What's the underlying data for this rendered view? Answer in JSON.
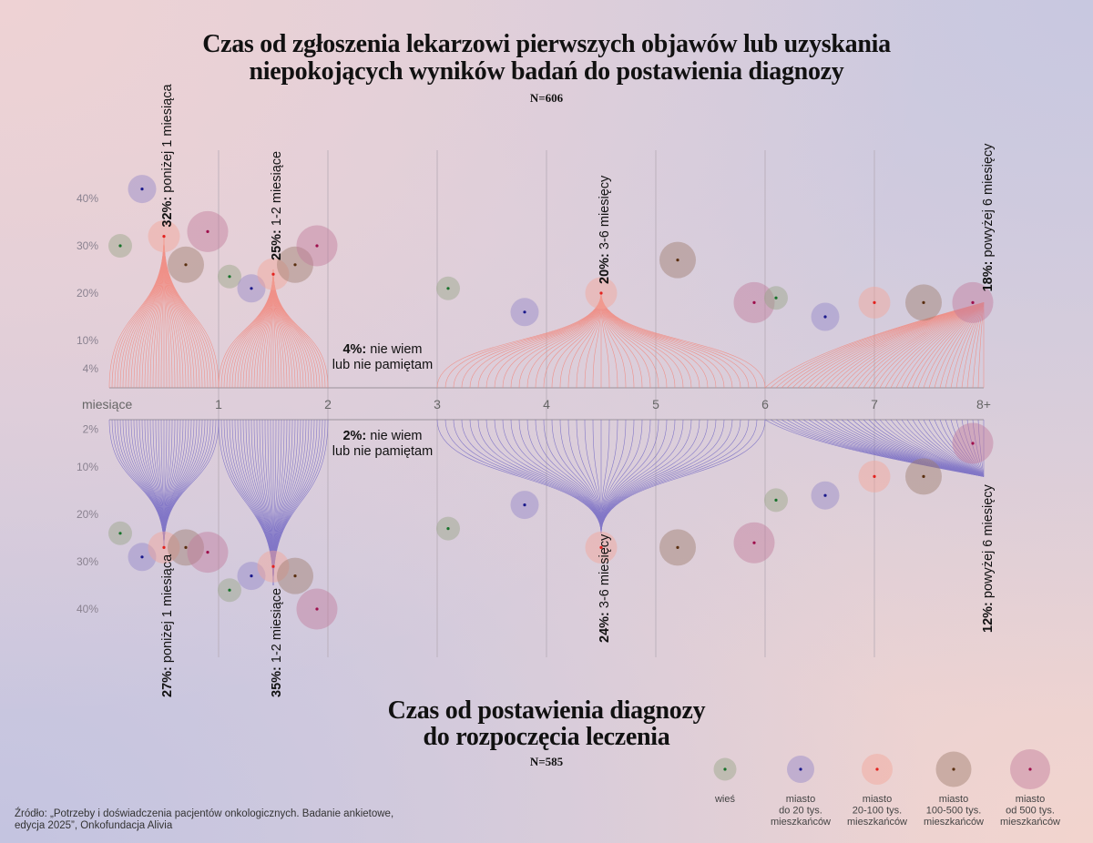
{
  "top_title": {
    "line1": "Czas od zgłoszenia lekarzowi pierwszych objawów lub uzyskania",
    "line2": "niepokojących wyników badań do postawienia diagnozy",
    "n": "N=606"
  },
  "bottom_title": {
    "line1": "Czas od postawienia diagnozy",
    "line2": "do rozpoczęcia leczenia",
    "n": "N=585"
  },
  "source": {
    "line1": "Źródło: „Potrzeby i doświadczenia pacjentów onkologicznych. Badanie ankietowe,",
    "line2": "edycja 2025”, Onkofundacja Alivia"
  },
  "chart_data": {
    "type": "bubble-fan",
    "x_axis": {
      "label": "miesiące",
      "ticks": [
        {
          "v": 1,
          "label": "1"
        },
        {
          "v": 2,
          "label": "2"
        },
        {
          "v": 3,
          "label": "3"
        },
        {
          "v": 4,
          "label": "4"
        },
        {
          "v": 5,
          "label": "5"
        },
        {
          "v": 6,
          "label": "6"
        },
        {
          "v": 7,
          "label": "7"
        },
        {
          "v": 8,
          "label": "8+"
        }
      ],
      "range": [
        0,
        8
      ]
    },
    "colors": {
      "top_fan": "#f2877c",
      "bottom_fan": "#7469c4",
      "grid": "#b5aab5",
      "axis": "#9a929a"
    },
    "settlements": [
      {
        "name": "wieś",
        "label_lines": [
          "wieś"
        ],
        "fill": "#96a586",
        "dot": "#17722a",
        "size": 1
      },
      {
        "name": "miasto do 20 tys. mieszkańców",
        "label_lines": [
          "miasto",
          "do 20 tys.",
          "mieszkańców"
        ],
        "fill": "#9384c8",
        "dot": "#1b1a8c",
        "size": 2
      },
      {
        "name": "miasto 20-100 tys. mieszkańców",
        "label_lines": [
          "miasto",
          "20-100 tys.",
          "mieszkańców"
        ],
        "fill": "#f5a396",
        "dot": "#e3221e",
        "size": 3
      },
      {
        "name": "miasto 100-500 tys. mieszkańców",
        "label_lines": [
          "miasto",
          "100-500 tys.",
          "mieszkańców"
        ],
        "fill": "#9e7d6c",
        "dot": "#5a2f10",
        "size": 4
      },
      {
        "name": "miasto od 500 tys. mieszkańców",
        "label_lines": [
          "miasto",
          "od 500 tys.",
          "mieszkańców"
        ],
        "fill": "#c27a9c",
        "dot": "#9e0f4c",
        "size": 5
      }
    ],
    "panels": [
      {
        "id": "top",
        "direction": "up",
        "y_ticks": [
          {
            "v": 40,
            "label": "40%"
          },
          {
            "v": 30,
            "label": "30%"
          },
          {
            "v": 20,
            "label": "20%"
          },
          {
            "v": 10,
            "label": "10%"
          },
          {
            "v": 4,
            "label": "4%"
          }
        ],
        "unknown": {
          "pct": "4%:",
          "line1": " nie wiem",
          "line2": "lub nie pamiętam",
          "value": 4
        },
        "groups": [
          {
            "range": [
              0,
              1
            ],
            "pct": "32%:",
            "label": " poniżej 1 miesiąca",
            "value": 32,
            "open": false,
            "by_settlement": [
              30,
              42,
              32,
              26,
              33
            ]
          },
          {
            "range": [
              1,
              2
            ],
            "pct": "25%:",
            "label": " 1-2 miesiące",
            "value": 25,
            "open": false,
            "by_settlement": [
              23.5,
              21,
              24,
              26,
              30
            ]
          },
          {
            "range": [
              3,
              6
            ],
            "pct": "20%:",
            "label": " 3-6 miesięcy",
            "value": 20,
            "open": false,
            "by_settlement": [
              21,
              16,
              20,
              27,
              18
            ]
          },
          {
            "range": [
              6,
              8
            ],
            "pct": "18%:",
            "label": " powyżej 6 miesięcy",
            "value": 18,
            "open": true,
            "by_settlement": [
              19,
              15,
              18,
              18,
              18
            ]
          }
        ]
      },
      {
        "id": "bottom",
        "direction": "down",
        "y_ticks": [
          {
            "v": 2,
            "label": "2%"
          },
          {
            "v": 10,
            "label": "10%"
          },
          {
            "v": 20,
            "label": "20%"
          },
          {
            "v": 30,
            "label": "30%"
          },
          {
            "v": 40,
            "label": "40%"
          }
        ],
        "unknown": {
          "pct": "2%:",
          "line1": " nie wiem",
          "line2": "lub nie pamiętam",
          "value": 2
        },
        "groups": [
          {
            "range": [
              0,
              1
            ],
            "pct": "27%:",
            "label": " poniżej 1 miesiąca",
            "value": 27,
            "open": false,
            "by_settlement": [
              24,
              29,
              27,
              27,
              28
            ]
          },
          {
            "range": [
              1,
              2
            ],
            "pct": "35%:",
            "label": " 1-2 miesiące",
            "value": 35,
            "open": false,
            "by_settlement": [
              36,
              33,
              31,
              33,
              40
            ]
          },
          {
            "range": [
              3,
              6
            ],
            "pct": "24%:",
            "label": " 3-6 miesięcy",
            "value": 24,
            "open": false,
            "by_settlement": [
              23,
              18,
              27,
              27,
              26
            ]
          },
          {
            "range": [
              6,
              8
            ],
            "pct": "12%:",
            "label": " powyżej 6 miesięcy",
            "value": 12,
            "open": true,
            "by_settlement": [
              17,
              16,
              12,
              12,
              5
            ]
          }
        ]
      }
    ]
  }
}
